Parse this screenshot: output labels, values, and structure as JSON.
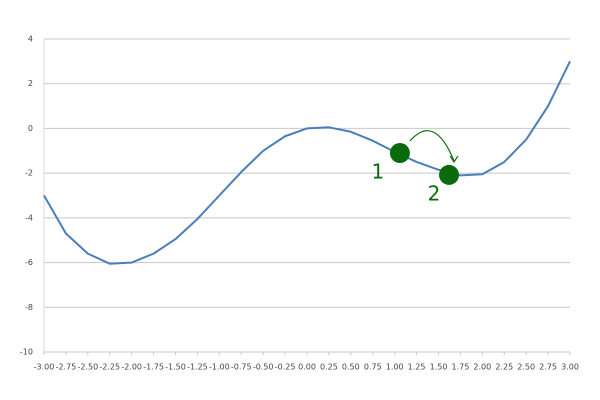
{
  "chart_data": {
    "type": "line",
    "x": [
      -3,
      -2.75,
      -2.5,
      -2.25,
      -2,
      -1.75,
      -1.5,
      -1.25,
      -1,
      -0.75,
      -0.5,
      -0.25,
      0,
      0.25,
      0.5,
      0.75,
      1,
      1.25,
      1.5,
      1.75,
      2,
      2.25,
      2.5,
      2.75,
      3
    ],
    "series": [
      {
        "color": "#4a7ebb",
        "values": [
          -3,
          -4.7,
          -5.6,
          -6.05,
          -6,
          -5.6,
          -4.95,
          -4.05,
          -3,
          -1.95,
          -1,
          -0.35,
          0,
          0.05,
          -0.15,
          -0.55,
          -1.05,
          -1.5,
          -1.85,
          -2.1,
          -2.05,
          -1.5,
          -0.5,
          1,
          3
        ]
      }
    ],
    "points": [
      {
        "label": "1",
        "x": 1.06,
        "y": -1.1,
        "color": "#0b6a0b"
      },
      {
        "label": "2",
        "x": 1.62,
        "y": -2.08,
        "color": "#0b6a0b"
      }
    ],
    "xlim": [
      -3,
      3
    ],
    "ylim": [
      -10,
      4
    ],
    "xticks": [
      {
        "value": -3,
        "label": "-3.00"
      },
      {
        "value": -2.75,
        "label": "-2.75"
      },
      {
        "value": -2.5,
        "label": "-2.50"
      },
      {
        "value": -2.25,
        "label": "-2.25"
      },
      {
        "value": -2,
        "label": "-2.00"
      },
      {
        "value": -1.75,
        "label": "-1.75"
      },
      {
        "value": -1.5,
        "label": "-1.50"
      },
      {
        "value": -1.25,
        "label": "-1.25"
      },
      {
        "value": -1,
        "label": "-1.00"
      },
      {
        "value": -0.75,
        "label": "-0.75"
      },
      {
        "value": -0.5,
        "label": "-0.50"
      },
      {
        "value": -0.25,
        "label": "-0.25"
      },
      {
        "value": 0,
        "label": "0.00"
      },
      {
        "value": 0.25,
        "label": "0.25"
      },
      {
        "value": 0.5,
        "label": "0.50"
      },
      {
        "value": 0.75,
        "label": "0.75"
      },
      {
        "value": 1,
        "label": "1.00"
      },
      {
        "value": 1.25,
        "label": "1.25"
      },
      {
        "value": 1.5,
        "label": "1.50"
      },
      {
        "value": 1.75,
        "label": "1.75"
      },
      {
        "value": 2,
        "label": "2.00"
      },
      {
        "value": 2.25,
        "label": "2.25"
      },
      {
        "value": 2.5,
        "label": "2.50"
      },
      {
        "value": 2.75,
        "label": "2.75"
      },
      {
        "value": 3,
        "label": "3.00"
      }
    ],
    "yticks": [
      4,
      2,
      0,
      -2,
      -4,
      -6,
      -8,
      -10
    ],
    "grid": true
  }
}
